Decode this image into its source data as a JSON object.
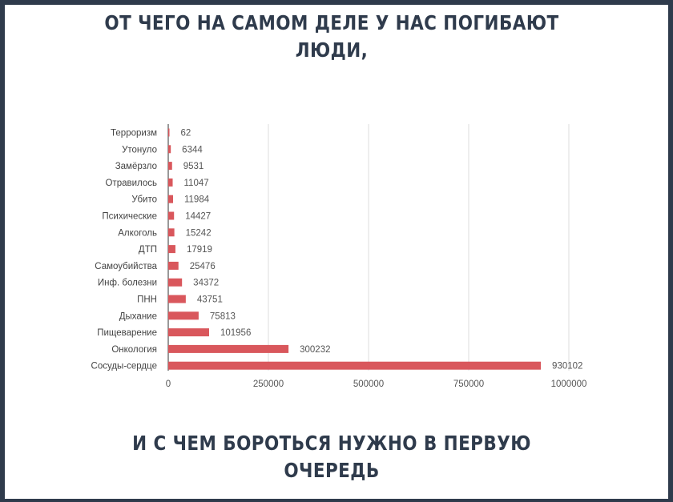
{
  "header": {
    "line1": "ОТ ЧЕГО НА САМОМ ДЕЛЕ У НАС ПОГИБАЮТ",
    "line2": "ЛЮДИ,"
  },
  "footer": {
    "line1": "И С ЧЕМ БОРОТЬСЯ НУЖНО В ПЕРВУЮ",
    "line2": "ОЧЕРЕДЬ"
  },
  "colors": {
    "bar": "#d9575c",
    "frame": "#2f3b4c",
    "grid": "#dddddd"
  },
  "chart_data": {
    "type": "bar",
    "orientation": "horizontal",
    "categories": [
      "Терроризм",
      "Утонуло",
      "Замёрзло",
      "Отравилось",
      "Убито",
      "Психические",
      "Алкоголь",
      "ДТП",
      "Самоубийства",
      "Инф. болезни",
      "ПНН",
      "Дыхание",
      "Пищеварение",
      "Онкология",
      "Сосуды-сердце"
    ],
    "values": [
      62,
      6344,
      9531,
      11047,
      11984,
      14427,
      15242,
      17919,
      25476,
      34372,
      43751,
      75813,
      101956,
      300232,
      930102
    ],
    "value_labels": [
      "62",
      "6344",
      "9531",
      "11047",
      "11984",
      "14427",
      "15242",
      "17919",
      "25476",
      "34372",
      "43751",
      "75813",
      "101956",
      "300232",
      "930102"
    ],
    "xlim": [
      0,
      1000000
    ],
    "xticks": [
      0,
      250000,
      500000,
      750000,
      1000000
    ],
    "xtick_labels": [
      "0",
      "250000",
      "500000",
      "750000",
      "1000000"
    ],
    "grid": true,
    "legend": false
  }
}
